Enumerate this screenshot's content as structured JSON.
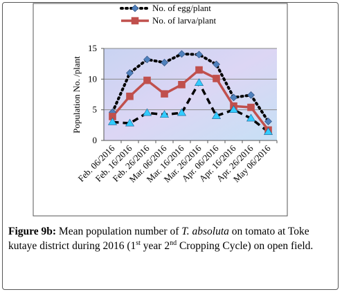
{
  "chart_data": {
    "type": "line",
    "ylabel": "Population No. /plant",
    "categories": [
      "Feb. 06/2016",
      "Feb. 16/2016",
      "Feb. 26/2016",
      "Mar. 06/2016",
      "Mar. 16/2016",
      "Mar. 26/2016",
      "Apr. 06/2016",
      "Apr. 16/2016",
      "Apr. 26/2016",
      "May 06/2016"
    ],
    "series": [
      {
        "name": "No. of egg/plant",
        "color": "#000000",
        "marker_color": "#4f81bd",
        "marker": "diamond",
        "dash": "dotted",
        "values": [
          4.6,
          11,
          13.2,
          12.7,
          14.1,
          14,
          12.4,
          7,
          7.4,
          3.1
        ]
      },
      {
        "name": "No. of larva/plant",
        "color": "#c0504d",
        "marker_color": "#c0504d",
        "marker": "square",
        "dash": "solid",
        "values": [
          3.9,
          7.2,
          9.8,
          7.6,
          9.1,
          11.5,
          10.1,
          5.6,
          5.4,
          1.7
        ]
      },
      {
        "color": "#000000",
        "marker_color": "#33ccff",
        "marker": "triangle",
        "dash": "dashed",
        "values": [
          3,
          2.8,
          4.5,
          4.2,
          4.5,
          9.4,
          4,
          5,
          3.6,
          1.4
        ]
      }
    ],
    "ylim": [
      0,
      15
    ],
    "yticks": [
      0,
      5,
      10,
      15
    ],
    "grid": true,
    "legend": "top"
  },
  "caption": [
    "Figure 9b:",
    " Mean population number of ",
    "T. absoluta",
    " on tomato at Toke kutaye district during 2016 (1",
    "st",
    " year 2",
    "nd",
    " Cropping Cycle) on open field."
  ]
}
